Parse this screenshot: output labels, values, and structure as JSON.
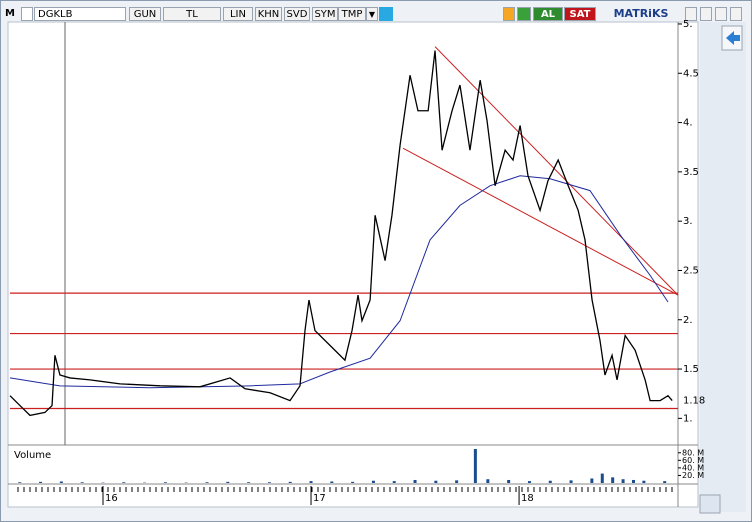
{
  "toolbar": {
    "logo": "M",
    "symbol": "DGKLB",
    "period": "GUN",
    "currency": "TL",
    "scale": "LIN",
    "buttons": [
      "KHN",
      "SVD",
      "SYM",
      "TMP"
    ],
    "buy": "AL",
    "sell": "SAT",
    "brand": "MATRiKS"
  },
  "chart_data": {
    "type": "line",
    "x": [
      15.553,
      15.601,
      15.649,
      15.721,
      15.755,
      15.769,
      15.793,
      15.841,
      15.938,
      16.082,
      16.274,
      16.466,
      16.611,
      16.683,
      16.803,
      16.899,
      16.947,
      16.971,
      16.99,
      17.019,
      17.091,
      17.163,
      17.197,
      17.226,
      17.245,
      17.284,
      17.308,
      17.356,
      17.389,
      17.428,
      17.476,
      17.514,
      17.563,
      17.596,
      17.63,
      17.678,
      17.716,
      17.764,
      17.813,
      17.846,
      17.885,
      17.933,
      17.971,
      18.005,
      18.043,
      18.101,
      18.139,
      18.188,
      18.236,
      18.284,
      18.317,
      18.351,
      18.389,
      18.413,
      18.447,
      18.471,
      18.51,
      18.558,
      18.606,
      18.63,
      18.678,
      18.716,
      18.736
    ],
    "series": [
      {
        "color": "#000000",
        "values": [
          1.23,
          1.13,
          1.03,
          1.06,
          1.13,
          1.64,
          1.44,
          1.41,
          1.39,
          1.35,
          1.33,
          1.32,
          1.41,
          1.3,
          1.26,
          1.18,
          1.33,
          1.89,
          2.2,
          1.89,
          1.74,
          1.59,
          1.89,
          2.25,
          1.99,
          2.2,
          3.06,
          2.6,
          3.06,
          3.77,
          4.48,
          4.12,
          4.12,
          4.73,
          3.72,
          4.12,
          4.38,
          3.72,
          4.43,
          4.02,
          3.36,
          3.72,
          3.62,
          3.97,
          3.46,
          3.11,
          3.41,
          3.62,
          3.36,
          3.11,
          2.81,
          2.2,
          1.79,
          1.44,
          1.64,
          1.39,
          1.84,
          1.69,
          1.39,
          1.18,
          1.18,
          1.23,
          1.18
        ]
      }
    ],
    "moving_average": {
      "color": "#1f2a9c",
      "x": [
        15.553,
        15.793,
        16.226,
        16.707,
        16.947,
        17.091,
        17.284,
        17.428,
        17.572,
        17.716,
        17.861,
        18.005,
        18.149,
        18.341,
        18.486,
        18.63,
        18.716
      ],
      "values": [
        1.41,
        1.33,
        1.31,
        1.33,
        1.35,
        1.47,
        1.61,
        1.99,
        2.81,
        3.16,
        3.36,
        3.46,
        3.43,
        3.31,
        2.86,
        2.45,
        2.18
      ]
    },
    "horizontal_lines": {
      "color": "#cc1f1f",
      "values": [
        1.1,
        1.5,
        1.86,
        2.27
      ]
    },
    "trend_lines": {
      "color": "#cc1f1f",
      "lines": [
        {
          "x": [
            17.596,
            18.764
          ],
          "values": [
            4.77,
            2.25
          ]
        },
        {
          "x": [
            17.442,
            18.764
          ],
          "values": [
            3.74,
            2.25
          ]
        }
      ]
    },
    "last_price": 1.18,
    "xlim": [
      15.553,
      18.764
    ],
    "xticks": [
      16,
      17,
      18
    ],
    "ylim": [
      0.75,
      5.02
    ],
    "yticks": [
      {
        "value": 1,
        "label": "1."
      },
      {
        "value": 1.5,
        "label": "1.5"
      },
      {
        "value": 2,
        "label": "2."
      },
      {
        "value": 2.5,
        "label": "2.5"
      },
      {
        "value": 3,
        "label": "3."
      },
      {
        "value": 3.5,
        "label": "3.5"
      },
      {
        "value": 4,
        "label": "4."
      },
      {
        "value": 4.5,
        "label": "4.5"
      },
      {
        "value": 5,
        "label": "5."
      }
    ],
    "volume": {
      "title": "Volume",
      "color": "#1a4d8f",
      "x": [
        15.6,
        15.7,
        15.8,
        15.9,
        16.0,
        16.1,
        16.2,
        16.3,
        16.4,
        16.5,
        16.6,
        16.7,
        16.8,
        16.9,
        17.0,
        17.1,
        17.2,
        17.3,
        17.4,
        17.5,
        17.6,
        17.7,
        17.79,
        17.85,
        17.95,
        18.05,
        18.15,
        18.25,
        18.35,
        18.4,
        18.45,
        18.5,
        18.55,
        18.6,
        18.7
      ],
      "values": [
        2,
        3,
        4,
        2,
        1,
        2,
        1,
        2,
        1,
        2,
        3,
        2,
        2,
        3,
        5,
        4,
        3,
        6,
        5,
        8,
        6,
        7,
        90,
        10,
        8,
        5,
        6,
        7,
        12,
        25,
        15,
        10,
        8,
        6,
        5
      ],
      "ylim": [
        0,
        90
      ],
      "yticks": [
        {
          "value": 20,
          "label": "20. M"
        },
        {
          "value": 40,
          "label": "40. M"
        },
        {
          "value": 60,
          "label": "60. M"
        },
        {
          "value": 80,
          "label": "80. M"
        }
      ]
    }
  }
}
